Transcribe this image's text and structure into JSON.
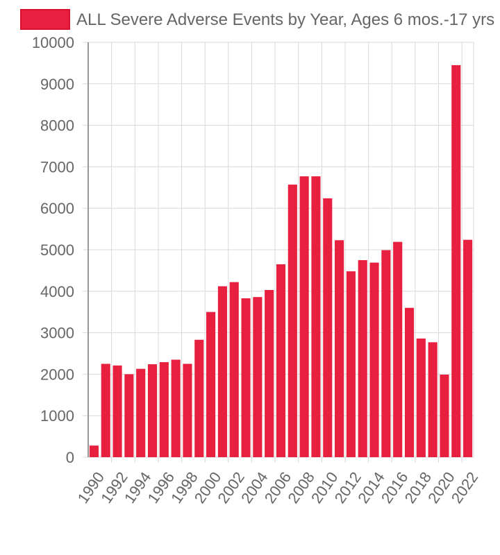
{
  "chart_data": {
    "type": "bar",
    "legend": {
      "label": "ALL Severe Adverse Events by Year, Ages 6 mos.-17 yrs",
      "color": "#e8203f",
      "position": "top"
    },
    "categories": [
      "1990",
      "1991",
      "1992",
      "1993",
      "1994",
      "1995",
      "1996",
      "1997",
      "1998",
      "1999",
      "2000",
      "2001",
      "2002",
      "2003",
      "2004",
      "2005",
      "2006",
      "2007",
      "2008",
      "2009",
      "2010",
      "2011",
      "2012",
      "2013",
      "2014",
      "2015",
      "2016",
      "2017",
      "2018",
      "2019",
      "2020",
      "2021",
      "2022"
    ],
    "x_tick_labels": [
      "1990",
      "1992",
      "1994",
      "1996",
      "1998",
      "2000",
      "2002",
      "2004",
      "2006",
      "2008",
      "2010",
      "2012",
      "2014",
      "2016",
      "2018",
      "2020",
      "2022"
    ],
    "values": [
      280,
      2250,
      2210,
      2000,
      2130,
      2240,
      2290,
      2350,
      2250,
      2830,
      3500,
      4120,
      4220,
      3830,
      3860,
      4030,
      4650,
      6570,
      6770,
      6770,
      6240,
      5230,
      4480,
      4750,
      4690,
      4990,
      5190,
      3600,
      2860,
      2770,
      1990,
      9450,
      5240
    ],
    "ylim": [
      0,
      10000
    ],
    "y_ticks": [
      0,
      1000,
      2000,
      3000,
      4000,
      5000,
      6000,
      7000,
      8000,
      9000,
      10000
    ],
    "bar_color": "#e8203f",
    "grid": true
  }
}
